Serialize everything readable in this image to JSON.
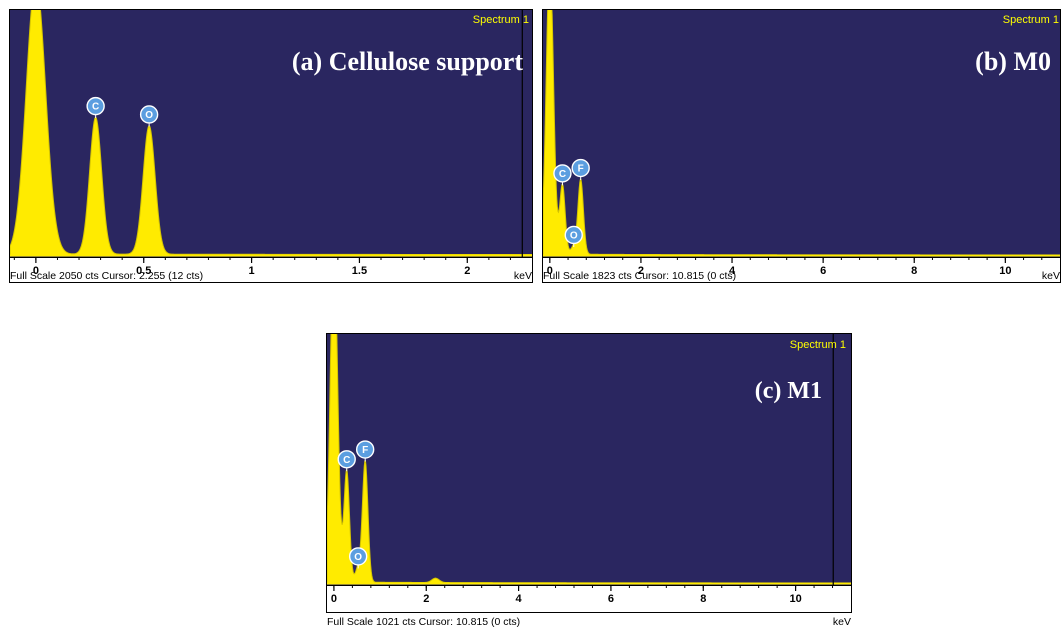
{
  "colors": {
    "plot_bg": "#2a2660",
    "spectrum": "#ffeb00",
    "spectrum_edge": "#d4c400",
    "marker": "#5b9ee0",
    "cursor_line": "#000000"
  },
  "chart_data": [
    {
      "type": "area",
      "spectrum_label": "Spectrum 1",
      "panel_title": "(a) Cellulose support",
      "status_text": "Full Scale 2050 cts Cursor: 2.255  (12 cts)",
      "unit_label": "keV",
      "xlim": [
        -0.12,
        2.3
      ],
      "ylim": [
        0,
        2050
      ],
      "x_ticks": [
        0,
        0.5,
        1,
        1.5,
        2
      ],
      "x_tick_labels": [
        "0",
        "0.5",
        "1",
        "1.5",
        "2"
      ],
      "cursor_x": 2.255,
      "peaks": [
        {
          "center": 0.0,
          "height": 2300,
          "width": 0.045
        },
        {
          "center": 0.277,
          "height": 1150,
          "width": 0.028
        },
        {
          "center": 0.525,
          "height": 1080,
          "width": 0.028
        }
      ],
      "markers": [
        {
          "label": "C",
          "x": 0.277,
          "y": 1150
        },
        {
          "label": "O",
          "x": 0.525,
          "y": 1080
        }
      ]
    },
    {
      "type": "area",
      "spectrum_label": "Spectrum 1",
      "panel_title": "(b) M0",
      "status_text": "Full Scale 1823 cts Cursor: 10.815  (0 cts)",
      "unit_label": "keV",
      "xlim": [
        -0.15,
        11.2
      ],
      "ylim": [
        0,
        1823
      ],
      "x_ticks": [
        0,
        2,
        4,
        6,
        8,
        10
      ],
      "x_tick_labels": [
        "0",
        "2",
        "4",
        "6",
        "8",
        "10"
      ],
      "cursor_x": null,
      "peaks": [
        {
          "center": 0.0,
          "height": 2200,
          "width": 0.08
        },
        {
          "center": 0.277,
          "height": 520,
          "width": 0.06
        },
        {
          "center": 0.525,
          "height": 60,
          "width": 0.06
        },
        {
          "center": 0.677,
          "height": 560,
          "width": 0.06
        }
      ],
      "markers": [
        {
          "label": "C",
          "x": 0.277,
          "y": 520
        },
        {
          "label": "O",
          "x": 0.525,
          "y": 60
        },
        {
          "label": "F",
          "x": 0.677,
          "y": 560
        }
      ]
    },
    {
      "type": "area",
      "spectrum_label": "Spectrum 1",
      "panel_title": "(c) M1",
      "status_text": "Full Scale 1021 cts Cursor: 10.815  (0 cts)",
      "unit_label": "keV",
      "xlim": [
        -0.15,
        11.2
      ],
      "ylim": [
        0,
        1021
      ],
      "x_ticks": [
        0,
        2,
        4,
        6,
        8,
        10
      ],
      "x_tick_labels": [
        "0",
        "2",
        "4",
        "6",
        "8",
        "10"
      ],
      "cursor_x": 10.815,
      "peaks": [
        {
          "center": 0.0,
          "height": 1400,
          "width": 0.08
        },
        {
          "center": 0.277,
          "height": 460,
          "width": 0.06
        },
        {
          "center": 0.525,
          "height": 60,
          "width": 0.06
        },
        {
          "center": 0.677,
          "height": 500,
          "width": 0.06
        },
        {
          "center": 2.2,
          "height": 18,
          "width": 0.08
        }
      ],
      "markers": [
        {
          "label": "C",
          "x": 0.277,
          "y": 460
        },
        {
          "label": "O",
          "x": 0.525,
          "y": 60
        },
        {
          "label": "F",
          "x": 0.677,
          "y": 500
        }
      ]
    }
  ]
}
